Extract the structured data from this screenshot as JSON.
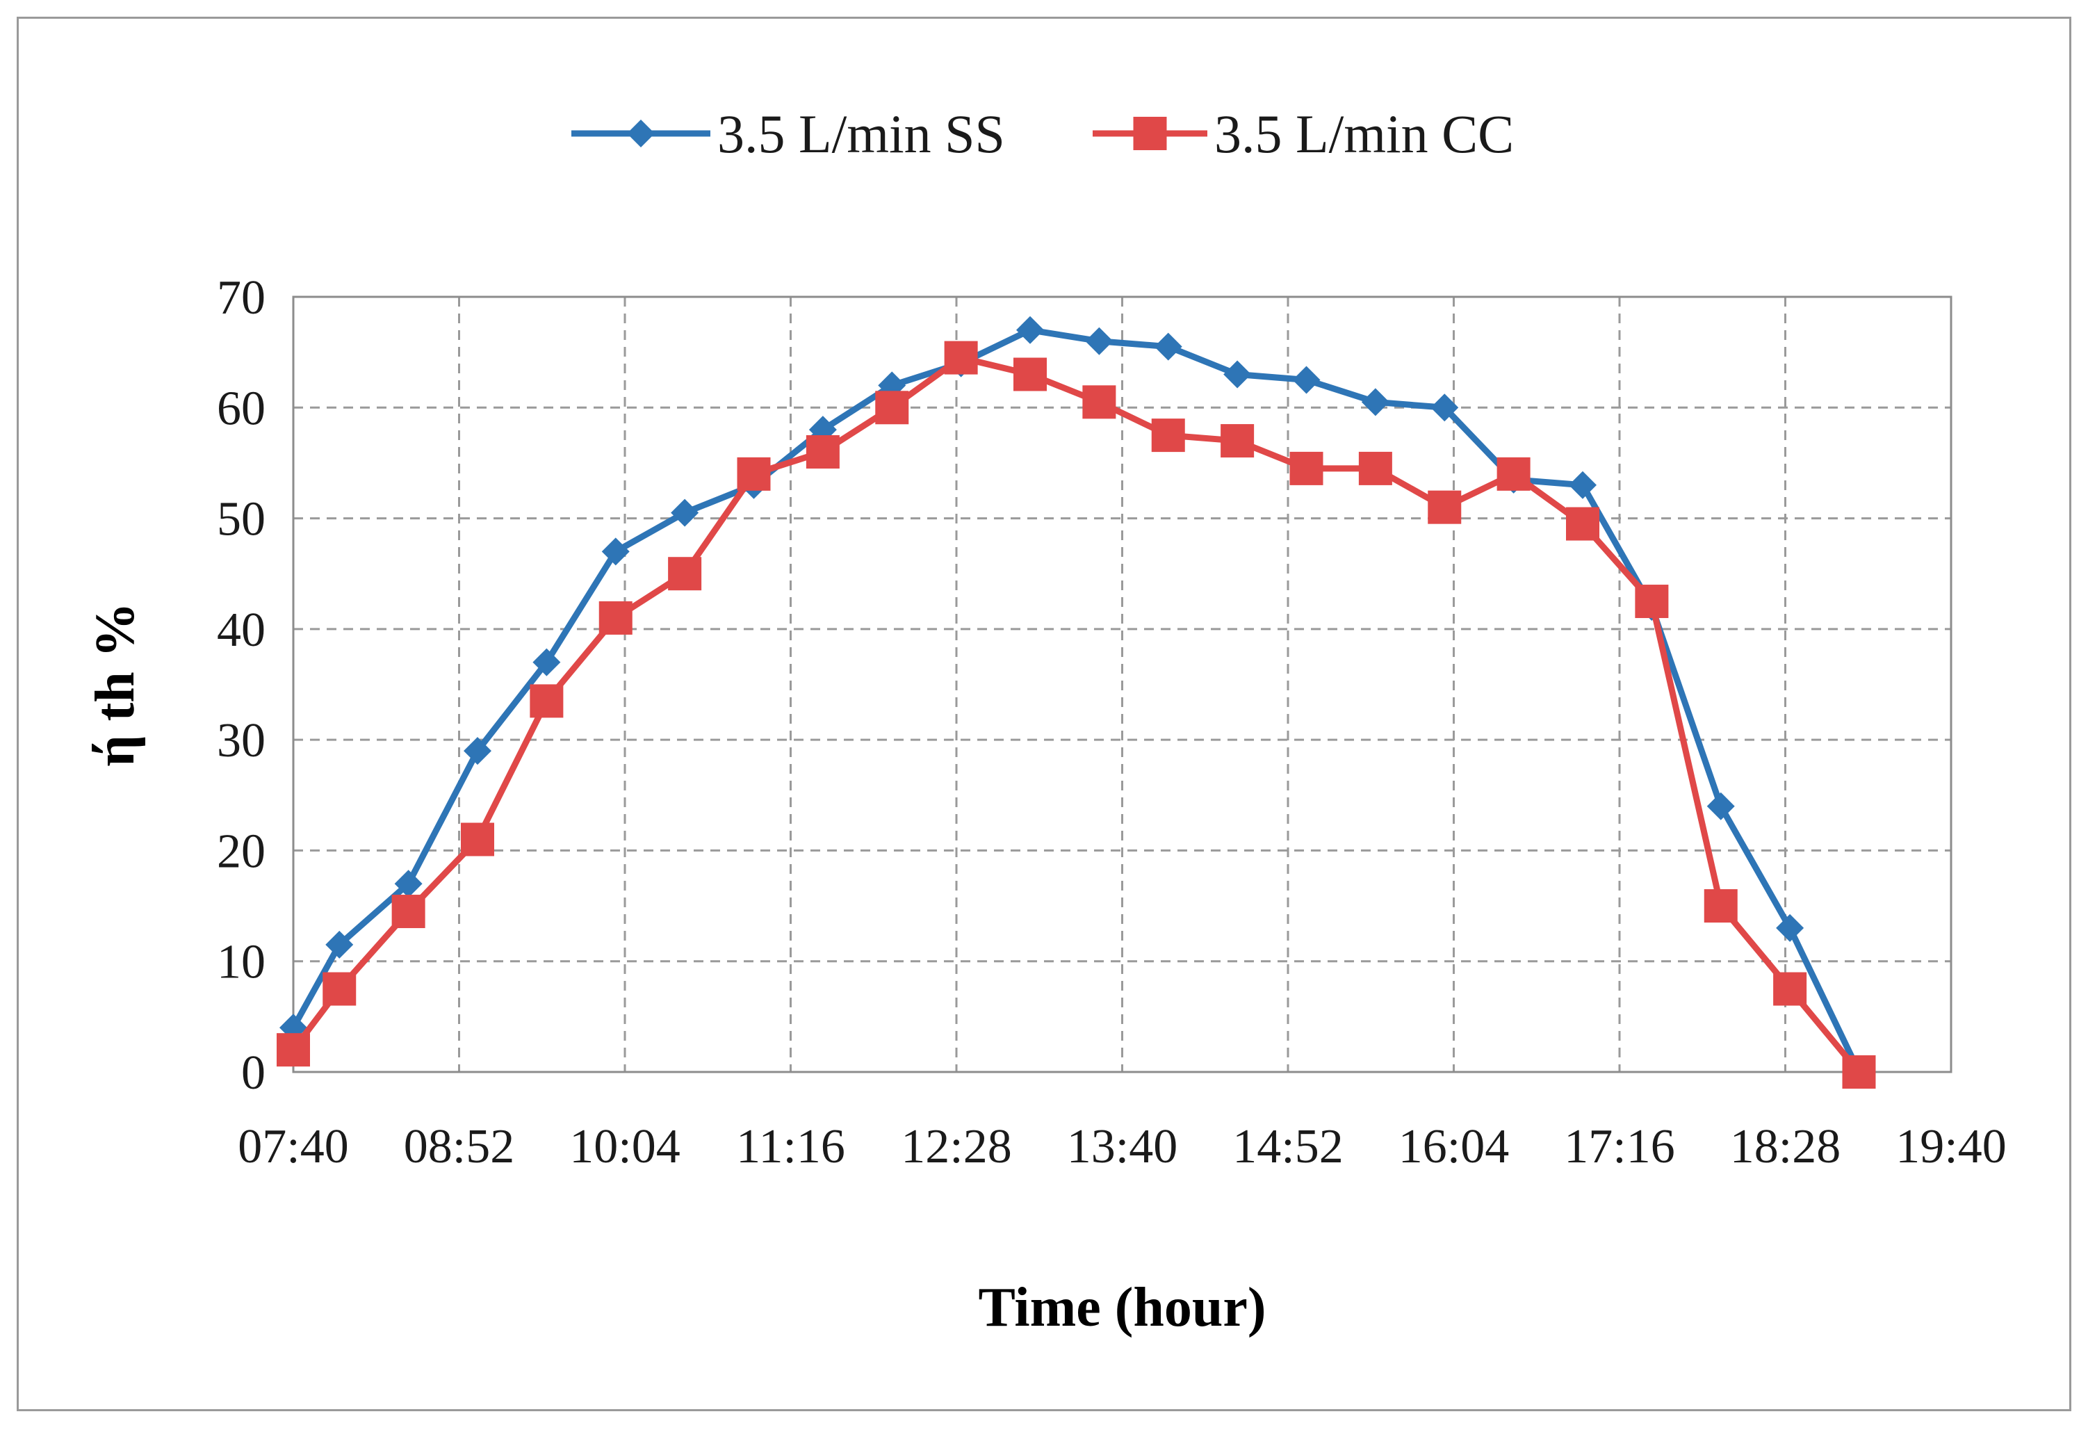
{
  "chart_data": {
    "type": "line",
    "title": "",
    "xlabel": "Time (hour)",
    "ylabel": "ή th %",
    "x_tick_labels": [
      "07:40",
      "08:52",
      "10:04",
      "11:16",
      "12:28",
      "13:40",
      "14:52",
      "16:04",
      "17:16",
      "18:28",
      "19:40"
    ],
    "x_unit": "minutes since 00:00",
    "xlim": [
      460,
      1180
    ],
    "ylim": [
      0,
      70
    ],
    "y_ticks": [
      0,
      10,
      20,
      30,
      40,
      50,
      60,
      70
    ],
    "grid": true,
    "legend_position": "top",
    "series": [
      {
        "name": "3.5 L/min SS",
        "color": "#2e75b6",
        "marker": "diamond",
        "x": [
          460,
          480,
          510,
          540,
          570,
          600,
          630,
          660,
          690,
          720,
          750,
          780,
          810,
          840,
          870,
          900,
          930,
          960,
          990,
          1020,
          1050,
          1080,
          1110,
          1140
        ],
        "y": [
          4,
          11.5,
          17,
          29,
          37,
          47,
          50.5,
          53,
          58,
          62,
          64,
          67,
          66,
          65.5,
          63,
          62.5,
          60.5,
          60,
          53.5,
          53,
          42,
          24,
          13,
          0
        ]
      },
      {
        "name": "3.5 L/min CC",
        "color": "#e04848",
        "marker": "square",
        "x": [
          460,
          480,
          510,
          540,
          570,
          600,
          630,
          660,
          690,
          720,
          750,
          780,
          810,
          840,
          870,
          900,
          930,
          960,
          990,
          1020,
          1050,
          1080,
          1110,
          1140
        ],
        "y": [
          2,
          7.5,
          14.5,
          21,
          33.5,
          41,
          45,
          54,
          56,
          60,
          64.5,
          63,
          60.5,
          57.5,
          57,
          54.5,
          54.5,
          51,
          54,
          49.5,
          42.5,
          15,
          7.5,
          0
        ]
      }
    ]
  }
}
